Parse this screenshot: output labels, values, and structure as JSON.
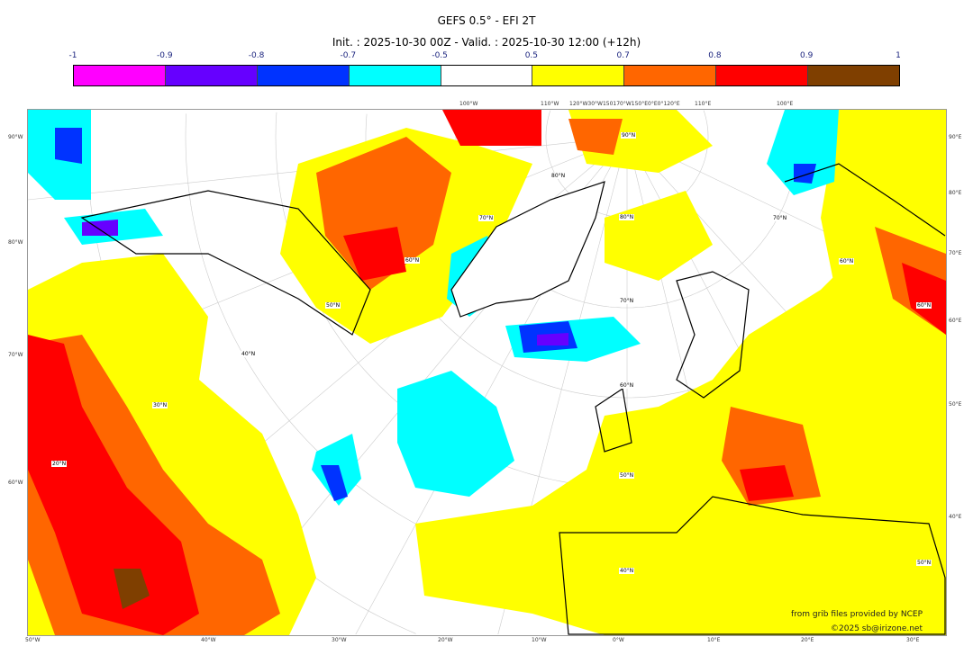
{
  "title": "GEFS 0.5° - EFI 2T",
  "subtitle": "Init. : 2025-10-30 00Z - Valid. : 2025-10-30 12:00 (+12h)",
  "colorbar": {
    "ticks": [
      "-1",
      "-0.9",
      "-0.8",
      "-0.7",
      "-0.5",
      "0.5",
      "0.7",
      "0.8",
      "0.9",
      "1"
    ],
    "colors": [
      "#ff00ff",
      "#6600ff",
      "#0033ff",
      "#00ffff",
      "#ffffff",
      "#ffff00",
      "#ff6600",
      "#ff0000",
      "#7f3f00"
    ]
  },
  "axes": {
    "bottom": [
      "50°W",
      "40°W",
      "30°W",
      "20°W",
      "10°W",
      "0°W",
      "10°E",
      "20°E",
      "30°E"
    ],
    "left": [
      "90°W",
      "80°W",
      "70°W",
      "60°W"
    ],
    "right": [
      "90°E",
      "80°E",
      "70°E",
      "60°E",
      "50°E",
      "40°E"
    ],
    "top": [
      "100°W",
      "110°W",
      "120°W30°W150170°W150°E0°E0°120°E",
      "110°E",
      "100°E"
    ]
  },
  "latitudes": [
    "90°N",
    "80°N",
    "70°N",
    "60°N",
    "50°N",
    "40°N",
    "30°N",
    "20°N",
    "80°N",
    "70°N",
    "60°N",
    "70°N",
    "60°N",
    "50°N",
    "40°N",
    "60°N",
    "50°N"
  ],
  "credits": {
    "source": "from grib files provided by NCEP",
    "copyright": "©2025 sb@irizone.net"
  }
}
